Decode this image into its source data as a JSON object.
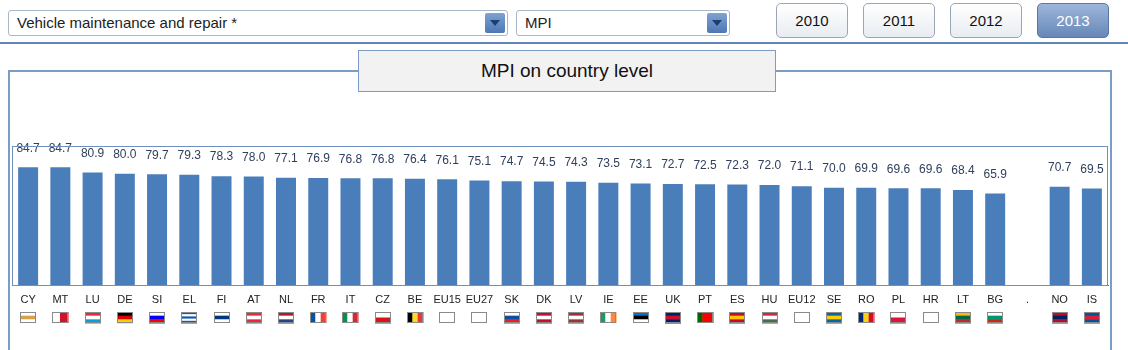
{
  "header": {
    "dropdowns": [
      "Vehicle maintenance and repair *",
      "MPI"
    ],
    "years": [
      "2010",
      "2011",
      "2012",
      "2013"
    ],
    "selected_year": "2013"
  },
  "chart_data": {
    "type": "bar",
    "title": "MPI on country level",
    "categories": [
      "CY",
      "MT",
      "LU",
      "DE",
      "SI",
      "EL",
      "FI",
      "AT",
      "NL",
      "FR",
      "IT",
      "CZ",
      "BE",
      "EU15",
      "EU27",
      "SK",
      "DK",
      "LV",
      "IE",
      "EE",
      "UK",
      "PT",
      "ES",
      "HU",
      "EU12",
      "SE",
      "RO",
      "PL",
      "HR",
      "LT",
      "BG",
      ".",
      "NO",
      "IS"
    ],
    "values": [
      84.7,
      84.7,
      80.9,
      80.0,
      79.7,
      79.3,
      78.3,
      78.0,
      77.1,
      76.9,
      76.8,
      76.8,
      76.4,
      76.1,
      75.1,
      74.7,
      74.5,
      74.3,
      73.5,
      73.1,
      72.7,
      72.5,
      72.3,
      72.0,
      71.1,
      70.0,
      69.9,
      69.6,
      69.6,
      68.4,
      65.9,
      null,
      70.7,
      69.5
    ],
    "value_labels": [
      "84.7",
      "84.7",
      "80.9",
      "80.0",
      "79.7",
      "79.3",
      "78.3",
      "78.0",
      "77.1",
      "76.9",
      "76.8",
      "76.8",
      "76.4",
      "76.1",
      "75.1",
      "74.7",
      "74.5",
      "74.3",
      "73.5",
      "73.1",
      "72.7",
      "72.5",
      "72.3",
      "72.0",
      "71.1",
      "70.0",
      "69.9",
      "69.6",
      "69.6",
      "68.4",
      "65.9",
      null,
      "70.7",
      "69.5"
    ],
    "color": "#4a7ebb",
    "ylim": [
      0,
      100
    ],
    "grid": false,
    "data_labels": true,
    "tick_labels": "x"
  }
}
